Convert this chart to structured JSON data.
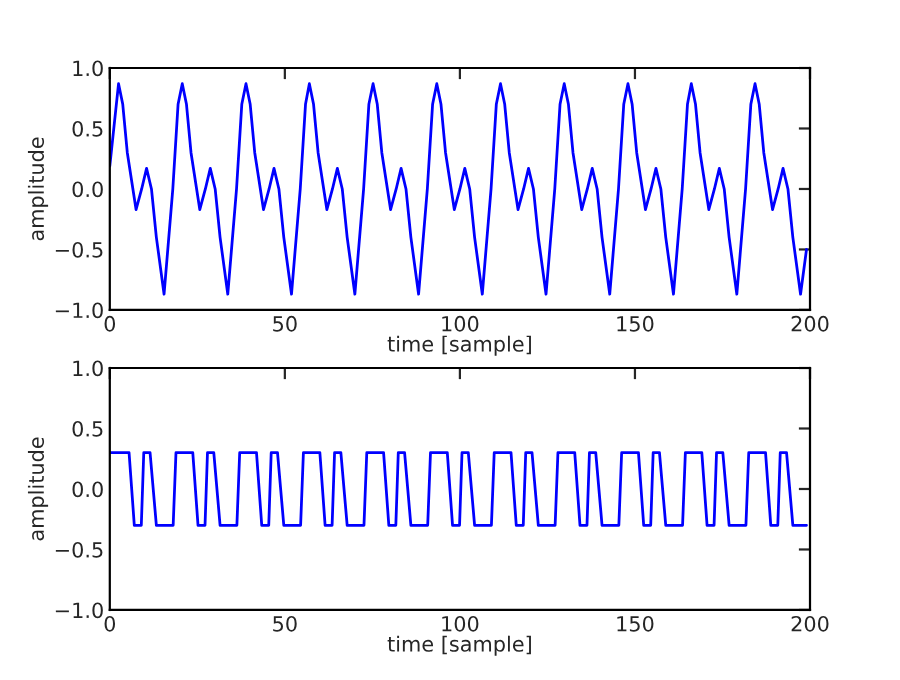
{
  "chart_data": [
    {
      "type": "line",
      "xlabel": "time [sample]",
      "ylabel": "amplitude",
      "xlim": [
        0,
        200
      ],
      "ylim": [
        -1.0,
        1.0
      ],
      "xticks": [
        0,
        50,
        100,
        150,
        200
      ],
      "yticks": [
        {
          "value": -1.0,
          "label": "−1.0"
        },
        {
          "value": -0.5,
          "label": "−0.5"
        },
        {
          "value": 0.0,
          "label": "0.0"
        },
        {
          "value": 0.5,
          "label": "0.5"
        },
        {
          "value": 1.0,
          "label": "1.0"
        }
      ],
      "grid": false,
      "legend": false,
      "marker": "none",
      "line_style": "solid",
      "series": [
        {
          "color": "#0000ff",
          "x": [
            0,
            2.5,
            3.7,
            5.0,
            7.5,
            9.1,
            10.5,
            11.9,
            13.3,
            15.5,
            18.0,
            19.5,
            20.7,
            21.9,
            23.2,
            25.7,
            27.3,
            28.7,
            30.1,
            31.5,
            33.7,
            36.2,
            37.7,
            38.9,
            40.1,
            41.4,
            43.9,
            45.5,
            46.9,
            48.3,
            49.7,
            51.9,
            54.4,
            55.9,
            57.0,
            58.2,
            59.5,
            62.0,
            63.6,
            65.0,
            66.4,
            67.8,
            70.0,
            72.5,
            74.0,
            75.2,
            76.4,
            77.7,
            80.2,
            81.8,
            83.2,
            84.6,
            86.0,
            88.2,
            90.7,
            92.2,
            93.4,
            94.6,
            95.9,
            98.4,
            100.0,
            101.4,
            102.8,
            104.2,
            106.4,
            108.9,
            110.4,
            111.6,
            112.8,
            114.1,
            116.6,
            118.2,
            119.6,
            121.0,
            122.4,
            124.6,
            127.1,
            128.6,
            129.8,
            131.0,
            132.3,
            134.8,
            136.4,
            137.8,
            139.2,
            140.6,
            142.8,
            145.3,
            146.8,
            148.0,
            149.2,
            150.5,
            153.0,
            154.6,
            156.0,
            157.4,
            158.8,
            161.0,
            163.5,
            165.0,
            166.1,
            167.3,
            168.6,
            171.1,
            172.7,
            174.1,
            175.5,
            176.9,
            179.1,
            181.6,
            183.1,
            184.3,
            185.5,
            186.8,
            189.3,
            190.9,
            192.3,
            193.7,
            195.1,
            197.3,
            199
          ],
          "values": [
            0.19,
            0.87,
            0.7,
            0.3,
            -0.17,
            0,
            0.17,
            0,
            -0.4,
            -0.87,
            0,
            0.7,
            0.87,
            0.7,
            0.3,
            -0.17,
            0,
            0.17,
            0,
            -0.4,
            -0.87,
            0,
            0.7,
            0.87,
            0.7,
            0.3,
            -0.17,
            0,
            0.17,
            0,
            -0.4,
            -0.87,
            0,
            0.7,
            0.87,
            0.7,
            0.3,
            -0.17,
            0,
            0.17,
            0,
            -0.4,
            -0.87,
            0,
            0.7,
            0.87,
            0.7,
            0.3,
            -0.17,
            0,
            0.17,
            0,
            -0.4,
            -0.87,
            0,
            0.7,
            0.87,
            0.7,
            0.3,
            -0.17,
            0,
            0.17,
            0,
            -0.4,
            -0.87,
            0,
            0.7,
            0.87,
            0.7,
            0.3,
            -0.17,
            0,
            0.17,
            0,
            -0.4,
            -0.87,
            0,
            0.7,
            0.87,
            0.7,
            0.3,
            -0.17,
            0,
            0.17,
            0,
            -0.4,
            -0.87,
            0,
            0.7,
            0.87,
            0.7,
            0.3,
            -0.17,
            0,
            0.17,
            0,
            -0.4,
            -0.87,
            0,
            0.7,
            0.87,
            0.7,
            0.3,
            -0.17,
            0,
            0.17,
            0,
            -0.4,
            -0.87,
            0,
            0.7,
            0.87,
            0.7,
            0.3,
            -0.17,
            0,
            0.17,
            0,
            -0.4,
            -0.87,
            -0.5
          ]
        }
      ]
    },
    {
      "type": "line",
      "xlabel": "time [sample]",
      "ylabel": "amplitude",
      "xlim": [
        0,
        200
      ],
      "ylim": [
        -1.0,
        1.0
      ],
      "xticks": [
        0,
        50,
        100,
        150,
        200
      ],
      "yticks": [
        {
          "value": -1.0,
          "label": "−1.0"
        },
        {
          "value": -0.5,
          "label": "−0.5"
        },
        {
          "value": 0.0,
          "label": "0.0"
        },
        {
          "value": 0.5,
          "label": "0.5"
        },
        {
          "value": 1.0,
          "label": "1.0"
        }
      ],
      "grid": false,
      "legend": false,
      "marker": "none",
      "line_style": "solid",
      "series": [
        {
          "color": "#0000ff",
          "x": [
            0,
            5.5,
            7.0,
            9.0,
            9.7,
            11.5,
            13.3,
            18.1,
            18.9,
            23.7,
            25.2,
            27.2,
            27.9,
            29.7,
            31.5,
            36.3,
            37.1,
            41.9,
            43.4,
            45.4,
            46.1,
            47.9,
            49.7,
            54.5,
            55.3,
            60.0,
            61.5,
            63.5,
            64.2,
            66.0,
            67.8,
            72.6,
            73.4,
            78.2,
            79.7,
            81.7,
            82.4,
            84.2,
            86.0,
            90.8,
            91.6,
            96.4,
            97.9,
            99.9,
            100.6,
            102.4,
            104.2,
            109.0,
            109.8,
            114.6,
            116.1,
            118.1,
            118.8,
            120.6,
            122.4,
            127.2,
            128.0,
            132.8,
            134.3,
            136.3,
            137.0,
            138.8,
            140.6,
            145.4,
            146.2,
            151.0,
            152.5,
            154.5,
            155.2,
            157.0,
            158.8,
            163.6,
            164.4,
            169.1,
            170.6,
            172.6,
            173.3,
            175.1,
            176.9,
            181.7,
            182.5,
            187.3,
            188.8,
            190.8,
            191.5,
            193.3,
            195.1,
            199
          ],
          "values": [
            0.3,
            0.3,
            -0.3,
            -0.3,
            0.3,
            0.3,
            -0.3,
            -0.3,
            0.3,
            0.3,
            -0.3,
            -0.3,
            0.3,
            0.3,
            -0.3,
            -0.3,
            0.3,
            0.3,
            -0.3,
            -0.3,
            0.3,
            0.3,
            -0.3,
            -0.3,
            0.3,
            0.3,
            -0.3,
            -0.3,
            0.3,
            0.3,
            -0.3,
            -0.3,
            0.3,
            0.3,
            -0.3,
            -0.3,
            0.3,
            0.3,
            -0.3,
            -0.3,
            0.3,
            0.3,
            -0.3,
            -0.3,
            0.3,
            0.3,
            -0.3,
            -0.3,
            0.3,
            0.3,
            -0.3,
            -0.3,
            0.3,
            0.3,
            -0.3,
            -0.3,
            0.3,
            0.3,
            -0.3,
            -0.3,
            0.3,
            0.3,
            -0.3,
            -0.3,
            0.3,
            0.3,
            -0.3,
            -0.3,
            0.3,
            0.3,
            -0.3,
            -0.3,
            0.3,
            0.3,
            -0.3,
            -0.3,
            0.3,
            0.3,
            -0.3,
            -0.3,
            0.3,
            0.3,
            -0.3,
            -0.3,
            0.3,
            0.3,
            -0.3,
            -0.3
          ]
        }
      ]
    }
  ]
}
